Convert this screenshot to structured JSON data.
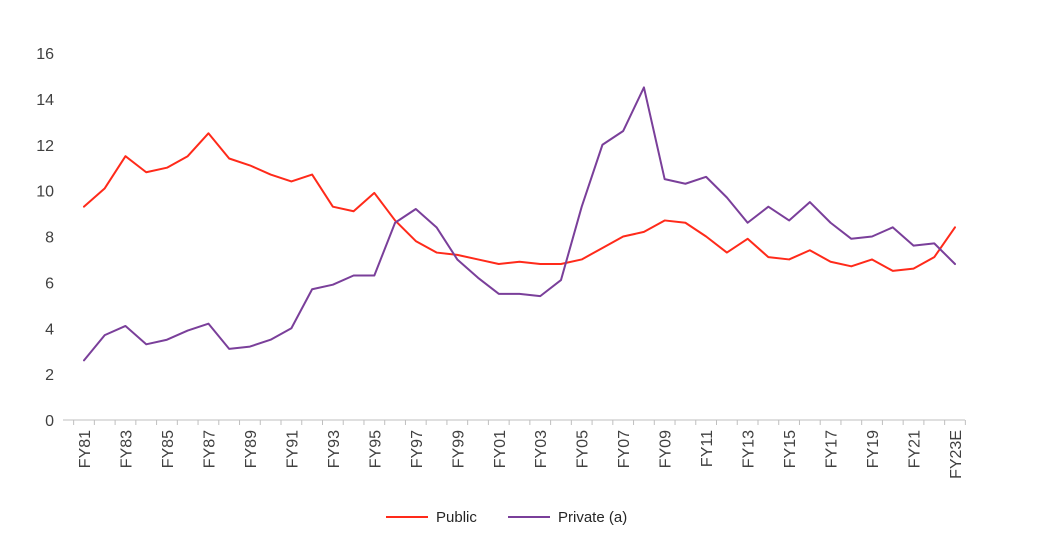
{
  "chart_data": {
    "type": "line",
    "title": "",
    "xlabel": "",
    "ylabel": "",
    "ylim": [
      0,
      16
    ],
    "yticks": [
      0,
      2,
      4,
      6,
      8,
      10,
      12,
      14,
      16
    ],
    "grid": false,
    "legend_position": "bottom",
    "categories": [
      "FY81",
      "FY82",
      "FY83",
      "FY84",
      "FY85",
      "FY86",
      "FY87",
      "FY88",
      "FY89",
      "FY90",
      "FY91",
      "FY92",
      "FY93",
      "FY94",
      "FY95",
      "FY96",
      "FY97",
      "FY98",
      "FY99",
      "FY00",
      "FY01",
      "FY02",
      "FY03",
      "FY04",
      "FY05",
      "FY06",
      "FY07",
      "FY08",
      "FY09",
      "FY10",
      "FY11",
      "FY12",
      "FY13",
      "FY14",
      "FY15",
      "FY16",
      "FY17",
      "FY18",
      "FY19",
      "FY20",
      "FY21",
      "FY22",
      "FY23E"
    ],
    "x_tick_labels": [
      "FY81",
      "FY83",
      "FY85",
      "FY87",
      "FY89",
      "FY91",
      "FY93",
      "FY95",
      "FY97",
      "FY99",
      "FY01",
      "FY03",
      "FY05",
      "FY07",
      "FY09",
      "FY11",
      "FY13",
      "FY15",
      "FY17",
      "FY19",
      "FY21",
      "FY23E"
    ],
    "series": [
      {
        "name": "Public",
        "color": "#ff2a1a",
        "values": [
          9.3,
          10.1,
          11.5,
          10.8,
          11.0,
          11.5,
          12.5,
          11.4,
          11.1,
          10.7,
          10.4,
          10.7,
          9.3,
          9.1,
          9.9,
          8.7,
          7.8,
          7.3,
          7.2,
          7.0,
          6.8,
          6.9,
          6.8,
          6.8,
          7.0,
          7.5,
          8.0,
          8.2,
          8.7,
          8.6,
          8.0,
          7.3,
          7.9,
          7.1,
          7.0,
          7.4,
          6.9,
          6.7,
          7.0,
          6.5,
          6.6,
          7.1,
          8.4
        ]
      },
      {
        "name": "Private (a)",
        "color": "#7a3f9a",
        "values": [
          2.6,
          3.7,
          4.1,
          3.3,
          3.5,
          3.9,
          4.2,
          3.1,
          3.2,
          3.5,
          4.0,
          5.7,
          5.9,
          6.3,
          6.3,
          8.6,
          9.2,
          8.4,
          7.0,
          6.2,
          5.5,
          5.5,
          5.4,
          6.1,
          9.3,
          12.0,
          12.6,
          14.5,
          10.5,
          10.3,
          10.6,
          9.7,
          8.6,
          9.3,
          8.7,
          9.5,
          8.6,
          7.9,
          8.0,
          8.4,
          7.6,
          7.7,
          6.8
        ]
      }
    ]
  }
}
